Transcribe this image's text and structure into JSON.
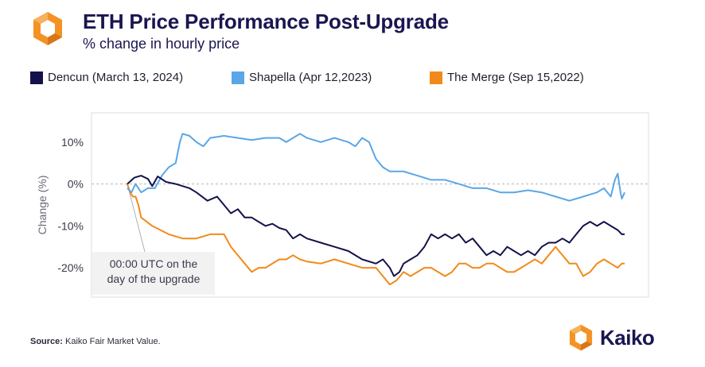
{
  "header": {
    "title": "ETH Price Performance Post-Upgrade",
    "subtitle": "% change in hourly price"
  },
  "footer": {
    "source_label": "Source:",
    "source_text": "Kaiko Fair Market Value.",
    "brand_name": "Kaiko"
  },
  "colors": {
    "dencun": "#13124a",
    "shapella": "#5aa6e6",
    "merge": "#f18a1b",
    "brand_navy": "#1a1650",
    "brand_orange": "#f39324"
  },
  "chart_data": {
    "type": "line",
    "title": "ETH Price Performance Post-Upgrade",
    "subtitle": "% change in hourly price",
    "xlabel": "",
    "ylabel": "Change (%)",
    "ylim": [
      -27,
      17
    ],
    "yticks": [
      10,
      0,
      -10,
      -20
    ],
    "ytick_labels": [
      "10%",
      "0%",
      "-10%",
      "-20%"
    ],
    "x_unit": "hours after 00:00 UTC on the day of the upgrade",
    "xlim": [
      0,
      360
    ],
    "grid": false,
    "zero_line": "dashed",
    "legend_position": "top",
    "annotation": {
      "text_lines": [
        "00:00 UTC on the",
        "day of the upgrade"
      ],
      "x": 0,
      "y": 0
    },
    "series": [
      {
        "name": "Dencun (March 13, 2024)",
        "color": "#13124a",
        "points": [
          [
            0,
            0
          ],
          [
            5,
            1.5
          ],
          [
            10,
            2
          ],
          [
            15,
            1.2
          ],
          [
            18,
            -0.5
          ],
          [
            22,
            1.8
          ],
          [
            28,
            0.5
          ],
          [
            35,
            0
          ],
          [
            45,
            -1
          ],
          [
            50,
            -2
          ],
          [
            58,
            -4
          ],
          [
            65,
            -3
          ],
          [
            70,
            -5
          ],
          [
            75,
            -7
          ],
          [
            80,
            -6
          ],
          [
            85,
            -8
          ],
          [
            90,
            -8
          ],
          [
            95,
            -9
          ],
          [
            100,
            -10
          ],
          [
            105,
            -9.5
          ],
          [
            110,
            -10.5
          ],
          [
            115,
            -11
          ],
          [
            120,
            -13
          ],
          [
            125,
            -12
          ],
          [
            130,
            -13
          ],
          [
            140,
            -14
          ],
          [
            150,
            -15
          ],
          [
            160,
            -16
          ],
          [
            170,
            -18
          ],
          [
            180,
            -19
          ],
          [
            185,
            -18
          ],
          [
            190,
            -20
          ],
          [
            193,
            -22
          ],
          [
            197,
            -21
          ],
          [
            200,
            -19
          ],
          [
            205,
            -18
          ],
          [
            210,
            -17
          ],
          [
            215,
            -15
          ],
          [
            220,
            -12
          ],
          [
            225,
            -13
          ],
          [
            230,
            -12
          ],
          [
            235,
            -13
          ],
          [
            240,
            -12
          ],
          [
            245,
            -14
          ],
          [
            250,
            -13
          ],
          [
            255,
            -15
          ],
          [
            260,
            -17
          ],
          [
            265,
            -16
          ],
          [
            270,
            -17
          ],
          [
            275,
            -15
          ],
          [
            280,
            -16
          ],
          [
            285,
            -17
          ],
          [
            290,
            -16
          ],
          [
            295,
            -17
          ],
          [
            300,
            -15
          ],
          [
            305,
            -14
          ],
          [
            310,
            -14
          ],
          [
            315,
            -13
          ],
          [
            320,
            -14
          ],
          [
            325,
            -12
          ],
          [
            330,
            -10
          ],
          [
            335,
            -9
          ],
          [
            340,
            -10
          ],
          [
            345,
            -9
          ],
          [
            350,
            -10
          ],
          [
            355,
            -11
          ],
          [
            358,
            -12
          ],
          [
            360,
            -12
          ]
        ]
      },
      {
        "name": "Shapella (Apr 12,2023)",
        "color": "#5aa6e6",
        "points": [
          [
            0,
            -1
          ],
          [
            3,
            -2
          ],
          [
            6,
            0
          ],
          [
            10,
            -2
          ],
          [
            15,
            -1
          ],
          [
            20,
            -1
          ],
          [
            25,
            2
          ],
          [
            30,
            4
          ],
          [
            35,
            5
          ],
          [
            38,
            10
          ],
          [
            40,
            12
          ],
          [
            45,
            11.5
          ],
          [
            50,
            10
          ],
          [
            55,
            9
          ],
          [
            60,
            11
          ],
          [
            70,
            11.5
          ],
          [
            80,
            11
          ],
          [
            90,
            10.5
          ],
          [
            100,
            11
          ],
          [
            110,
            11
          ],
          [
            115,
            10
          ],
          [
            120,
            11
          ],
          [
            125,
            12
          ],
          [
            130,
            11
          ],
          [
            140,
            10
          ],
          [
            150,
            11
          ],
          [
            160,
            10
          ],
          [
            165,
            9
          ],
          [
            170,
            11
          ],
          [
            175,
            10
          ],
          [
            180,
            6
          ],
          [
            185,
            4
          ],
          [
            190,
            3
          ],
          [
            200,
            3
          ],
          [
            210,
            2
          ],
          [
            220,
            1
          ],
          [
            230,
            1
          ],
          [
            240,
            0
          ],
          [
            250,
            -1
          ],
          [
            260,
            -1
          ],
          [
            270,
            -2
          ],
          [
            280,
            -2
          ],
          [
            290,
            -1.5
          ],
          [
            300,
            -2
          ],
          [
            310,
            -3
          ],
          [
            320,
            -4
          ],
          [
            330,
            -3
          ],
          [
            335,
            -2.5
          ],
          [
            340,
            -2
          ],
          [
            345,
            -1
          ],
          [
            350,
            -3
          ],
          [
            353,
            1
          ],
          [
            355,
            2.5
          ],
          [
            357,
            -2
          ],
          [
            358,
            -3.5
          ],
          [
            360,
            -2
          ]
        ]
      },
      {
        "name": "The Merge (Sep 15,2022)",
        "color": "#f18a1b",
        "points": [
          [
            0,
            0
          ],
          [
            2,
            -2
          ],
          [
            4,
            -3
          ],
          [
            6,
            -3
          ],
          [
            8,
            -5
          ],
          [
            10,
            -8
          ],
          [
            14,
            -9
          ],
          [
            18,
            -10
          ],
          [
            24,
            -11
          ],
          [
            30,
            -12
          ],
          [
            40,
            -13
          ],
          [
            50,
            -13
          ],
          [
            60,
            -12
          ],
          [
            70,
            -12
          ],
          [
            75,
            -15
          ],
          [
            80,
            -17
          ],
          [
            85,
            -19
          ],
          [
            90,
            -21
          ],
          [
            95,
            -20
          ],
          [
            100,
            -20
          ],
          [
            110,
            -18
          ],
          [
            115,
            -18
          ],
          [
            120,
            -17
          ],
          [
            125,
            -18
          ],
          [
            130,
            -18.5
          ],
          [
            140,
            -19
          ],
          [
            150,
            -18
          ],
          [
            160,
            -19
          ],
          [
            170,
            -20
          ],
          [
            180,
            -20
          ],
          [
            185,
            -22
          ],
          [
            190,
            -24
          ],
          [
            195,
            -23
          ],
          [
            200,
            -21
          ],
          [
            205,
            -22
          ],
          [
            210,
            -21
          ],
          [
            215,
            -20
          ],
          [
            220,
            -20
          ],
          [
            225,
            -21
          ],
          [
            230,
            -22
          ],
          [
            235,
            -21
          ],
          [
            240,
            -19
          ],
          [
            245,
            -19
          ],
          [
            250,
            -20
          ],
          [
            255,
            -20
          ],
          [
            260,
            -19
          ],
          [
            265,
            -19
          ],
          [
            270,
            -20
          ],
          [
            275,
            -21
          ],
          [
            280,
            -21
          ],
          [
            285,
            -20
          ],
          [
            290,
            -19
          ],
          [
            295,
            -18
          ],
          [
            300,
            -19
          ],
          [
            305,
            -17
          ],
          [
            310,
            -15
          ],
          [
            315,
            -17
          ],
          [
            320,
            -19
          ],
          [
            325,
            -19
          ],
          [
            330,
            -22
          ],
          [
            335,
            -21
          ],
          [
            340,
            -19
          ],
          [
            345,
            -18
          ],
          [
            350,
            -19
          ],
          [
            355,
            -20
          ],
          [
            358,
            -19
          ],
          [
            360,
            -19
          ]
        ]
      }
    ]
  }
}
